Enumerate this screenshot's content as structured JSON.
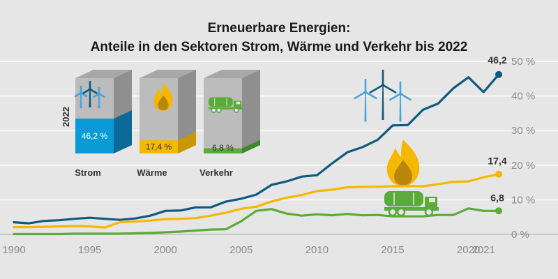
{
  "chart_data": {
    "type": "line",
    "title": "Erneuerbare Energien:",
    "subtitle": "Anteile in den Sektoren Strom, Wärme und Verkehr bis 2022",
    "x_tick_labels": [
      "1990",
      "1995",
      "2000",
      "2005",
      "2010",
      "2015",
      "2020",
      "2021"
    ],
    "y_tick_labels": [
      "0 %",
      "10 %",
      "20 %",
      "30 %",
      "40 %",
      "50 %"
    ],
    "xlim": [
      1990,
      2022
    ],
    "ylim": [
      0,
      50
    ],
    "grid": true,
    "x": [
      1990,
      1991,
      1992,
      1993,
      1994,
      1995,
      1996,
      1997,
      1998,
      1999,
      2000,
      2001,
      2002,
      2003,
      2004,
      2005,
      2006,
      2007,
      2008,
      2009,
      2010,
      2011,
      2012,
      2013,
      2014,
      2015,
      2016,
      2017,
      2018,
      2019,
      2020,
      2021,
      2022
    ],
    "series": [
      {
        "key": "strom",
        "color": "#0e5a82",
        "values": [
          3.5,
          3.2,
          3.9,
          4.1,
          4.5,
          4.8,
          4.5,
          4.2,
          4.6,
          5.4,
          6.8,
          6.9,
          7.8,
          7.8,
          9.5,
          10.3,
          11.5,
          14.3,
          15.3,
          16.7,
          17.1,
          20.5,
          23.7,
          25.2,
          27.3,
          31.5,
          31.6,
          36.0,
          37.8,
          42.2,
          45.4,
          41.1,
          46.2
        ]
      },
      {
        "key": "waerme",
        "color": "#f5b800",
        "values": [
          2.1,
          2.1,
          2.2,
          2.3,
          2.4,
          2.3,
          2.0,
          3.5,
          3.7,
          4.0,
          4.4,
          4.5,
          4.7,
          5.4,
          6.3,
          7.4,
          8.0,
          9.5,
          10.6,
          11.4,
          12.5,
          12.9,
          13.6,
          13.7,
          13.8,
          13.9,
          14.0,
          13.9,
          14.5,
          15.2,
          15.3,
          16.5,
          17.4
        ]
      },
      {
        "key": "verkehr",
        "color": "#5aab3a",
        "values": [
          0.1,
          0.1,
          0.1,
          0.1,
          0.2,
          0.2,
          0.2,
          0.2,
          0.3,
          0.4,
          0.6,
          0.8,
          1.1,
          1.4,
          1.5,
          3.8,
          6.8,
          7.3,
          6.0,
          5.4,
          5.8,
          5.5,
          5.9,
          5.5,
          5.6,
          5.2,
          5.2,
          5.2,
          5.6,
          5.6,
          7.5,
          6.8,
          6.8
        ]
      }
    ],
    "end_labels": [
      "46,2",
      "17,4",
      "6,8"
    ],
    "cubes": {
      "year_label": "2022",
      "items": [
        {
          "label": "Strom",
          "value_label": "46,2 %",
          "share": 46.2,
          "icon": "wind-turbine-icon",
          "color": "#0a9ad6",
          "dark": "#0b6a97"
        },
        {
          "label": "Wärme",
          "value_label": "17,4 %",
          "share": 17.4,
          "icon": "flame-icon",
          "color": "#f5b800",
          "dark": "#c99700"
        },
        {
          "label": "Verkehr",
          "value_label": "6,8 %",
          "share": 6.8,
          "icon": "tank-truck-icon",
          "color": "#5aab3a",
          "dark": "#3e8a28"
        }
      ]
    }
  }
}
